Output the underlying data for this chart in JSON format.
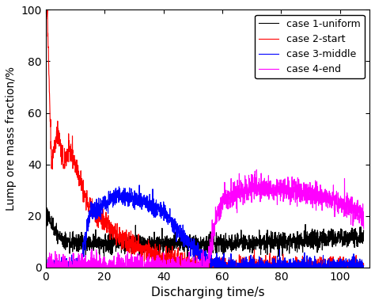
{
  "title": "",
  "xlabel": "Discharging time/s",
  "ylabel": "Lump ore mass fraction/%",
  "xlim": [
    0,
    110
  ],
  "ylim": [
    0,
    100
  ],
  "xticks": [
    0,
    20,
    40,
    60,
    80,
    100
  ],
  "yticks": [
    0,
    20,
    40,
    60,
    80,
    100
  ],
  "legend_labels": [
    "case 1-uniform",
    "case 2-start",
    "case 3-middle",
    "case 4-end"
  ],
  "line_colors": [
    "#000000",
    "#ff0000",
    "#0000ff",
    "#ff00ff"
  ],
  "line_width": 0.8,
  "seed": 42,
  "noise_seed": 7
}
